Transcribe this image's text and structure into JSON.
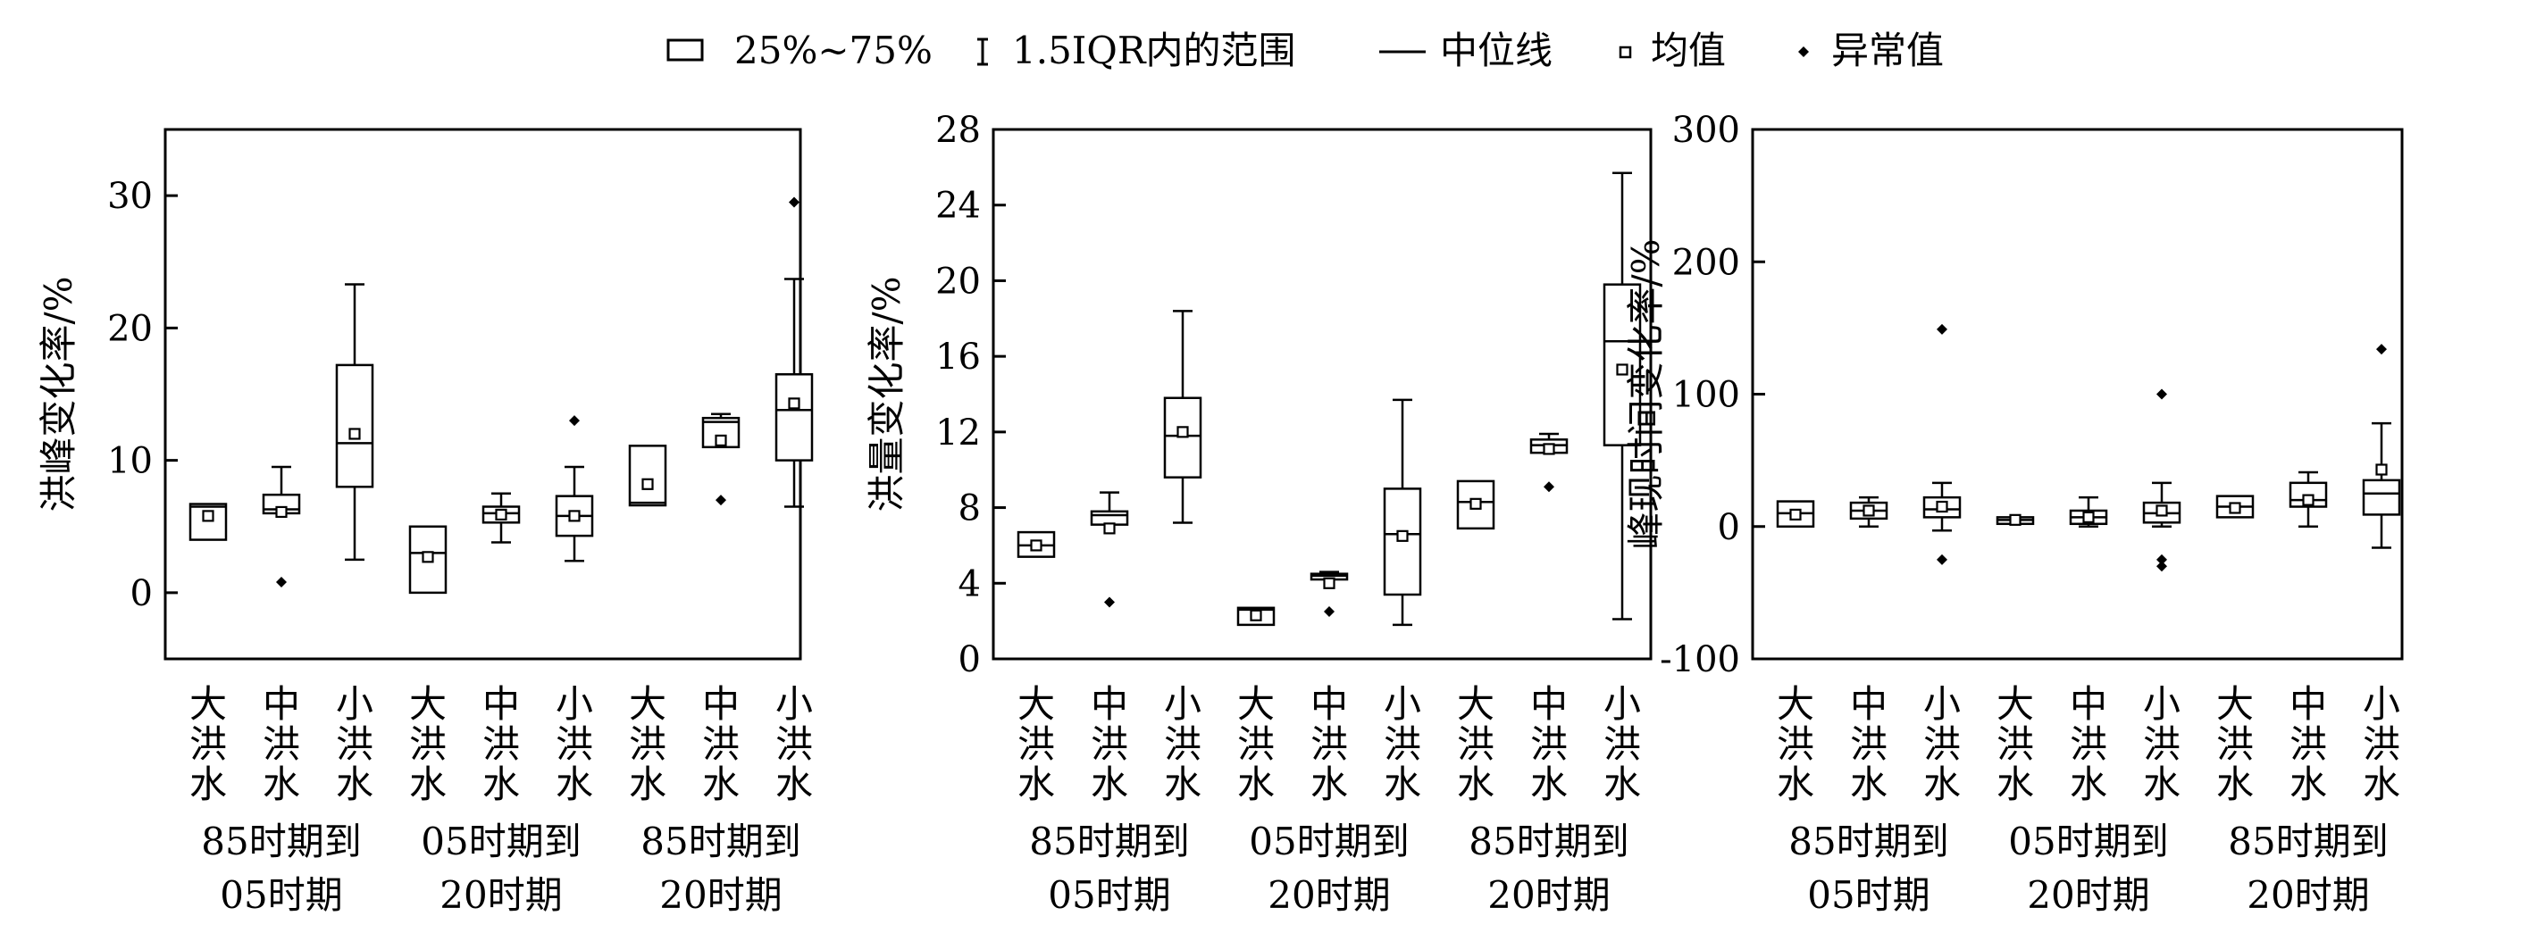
{
  "legend": {
    "box": "25%~75%",
    "whisker": "1.5IQR内的范围",
    "median": "中位线",
    "mean": "均值",
    "outlier": "异常值"
  },
  "categories": [
    "大洪水",
    "中洪水",
    "小洪水"
  ],
  "groups": [
    "85时期到05时期",
    "05时期到20时期",
    "85时期到20时期"
  ],
  "chart_data": [
    {
      "type": "box",
      "ylabel": "洪峰变化率/%",
      "ylim": [
        -5,
        35
      ],
      "yticks": [
        0,
        10,
        20,
        30
      ],
      "groups": [
        "85时期到05时期",
        "05时期到20时期",
        "85时期到20时期"
      ],
      "categories": [
        "大洪水",
        "中洪水",
        "小洪水"
      ],
      "boxes": [
        {
          "group": "85时期到05时期",
          "category": "大洪水",
          "whisker_low": null,
          "q1": 4.0,
          "median": 6.5,
          "q3": 6.7,
          "whisker_high": null,
          "mean": 5.8,
          "outliers": []
        },
        {
          "group": "85时期到05时期",
          "category": "中洪水",
          "whisker_low": null,
          "q1": 6.0,
          "median": 6.3,
          "q3": 7.4,
          "whisker_high": 9.5,
          "mean": 6.1,
          "outliers": [
            0.8
          ]
        },
        {
          "group": "85时期到05时期",
          "category": "小洪水",
          "whisker_low": 2.5,
          "q1": 8.0,
          "median": 11.3,
          "q3": 17.2,
          "whisker_high": 23.3,
          "mean": 12.0,
          "outliers": []
        },
        {
          "group": "05时期到20时期",
          "category": "大洪水",
          "whisker_low": null,
          "q1": 0.0,
          "median": 3.0,
          "q3": 5.0,
          "whisker_high": null,
          "mean": 2.7,
          "outliers": []
        },
        {
          "group": "05时期到20时期",
          "category": "中洪水",
          "whisker_low": 3.8,
          "q1": 5.3,
          "median": 6.0,
          "q3": 6.5,
          "whisker_high": 7.5,
          "mean": 5.9,
          "outliers": []
        },
        {
          "group": "05时期到20时期",
          "category": "小洪水",
          "whisker_low": 2.4,
          "q1": 4.3,
          "median": 5.8,
          "q3": 7.3,
          "whisker_high": 9.5,
          "mean": 5.8,
          "outliers": [
            13.0
          ]
        },
        {
          "group": "85时期到20时期",
          "category": "大洪水",
          "whisker_low": null,
          "q1": 6.6,
          "median": 6.8,
          "q3": 11.1,
          "whisker_high": null,
          "mean": 8.2,
          "outliers": []
        },
        {
          "group": "85时期到20时期",
          "category": "中洪水",
          "whisker_low": null,
          "q1": 11.0,
          "median": 12.9,
          "q3": 13.2,
          "whisker_high": 13.5,
          "mean": 11.5,
          "outliers": [
            7.0
          ]
        },
        {
          "group": "85时期到20时期",
          "category": "小洪水",
          "whisker_low": 6.5,
          "q1": 10.0,
          "median": 13.8,
          "q3": 16.5,
          "whisker_high": 23.7,
          "mean": 14.3,
          "outliers": [
            29.5
          ]
        }
      ]
    },
    {
      "type": "box",
      "ylabel": "洪量变化率/%",
      "ylim": [
        0,
        28
      ],
      "yticks": [
        0,
        4,
        8,
        12,
        16,
        20,
        24,
        28
      ],
      "groups": [
        "85时期到05时期",
        "05时期到20时期",
        "85时期到20时期"
      ],
      "categories": [
        "大洪水",
        "中洪水",
        "小洪水"
      ],
      "boxes": [
        {
          "group": "85时期到05时期",
          "category": "大洪水",
          "whisker_low": null,
          "q1": 5.4,
          "median": 6.0,
          "q3": 6.7,
          "whisker_high": null,
          "mean": 6.0,
          "outliers": []
        },
        {
          "group": "85时期到05时期",
          "category": "中洪水",
          "whisker_low": null,
          "q1": 7.1,
          "median": 7.6,
          "q3": 7.8,
          "whisker_high": 8.8,
          "mean": 6.9,
          "outliers": [
            3.0
          ]
        },
        {
          "group": "85时期到05时期",
          "category": "小洪水",
          "whisker_low": 7.2,
          "q1": 9.6,
          "median": 11.8,
          "q3": 13.8,
          "whisker_high": 18.4,
          "mean": 12.0,
          "outliers": []
        },
        {
          "group": "05时期到20时期",
          "category": "大洪水",
          "whisker_low": null,
          "q1": 1.8,
          "median": 2.6,
          "q3": 2.7,
          "whisker_high": null,
          "mean": 2.3,
          "outliers": []
        },
        {
          "group": "05时期到20时期",
          "category": "中洪水",
          "whisker_low": null,
          "q1": 4.2,
          "median": 4.4,
          "q3": 4.5,
          "whisker_high": 4.6,
          "mean": 4.0,
          "outliers": [
            2.5
          ]
        },
        {
          "group": "05时期到20时期",
          "category": "小洪水",
          "whisker_low": 1.8,
          "q1": 3.4,
          "median": 6.6,
          "q3": 9.0,
          "whisker_high": 13.7,
          "mean": 6.5,
          "outliers": []
        },
        {
          "group": "85时期到20时期",
          "category": "大洪水",
          "whisker_low": null,
          "q1": 6.9,
          "median": 8.3,
          "q3": 9.4,
          "whisker_high": null,
          "mean": 8.2,
          "outliers": []
        },
        {
          "group": "85时期到20时期",
          "category": "中洪水",
          "whisker_low": null,
          "q1": 10.9,
          "median": 11.3,
          "q3": 11.6,
          "whisker_high": 11.9,
          "mean": 11.1,
          "outliers": [
            9.1
          ]
        },
        {
          "group": "85时期到20时期",
          "category": "小洪水",
          "whisker_low": 2.1,
          "q1": 11.3,
          "median": 16.8,
          "q3": 19.8,
          "whisker_high": 25.7,
          "mean": 15.3,
          "outliers": []
        }
      ]
    },
    {
      "type": "box",
      "ylabel": "峰现时间变化率/%",
      "ylim": [
        -100,
        300
      ],
      "yticks": [
        -100,
        0,
        100,
        200,
        300
      ],
      "groups": [
        "85时期到05时期",
        "05时期到20时期",
        "85时期到20时期"
      ],
      "categories": [
        "大洪水",
        "中洪水",
        "小洪水"
      ],
      "boxes": [
        {
          "group": "85时期到05时期",
          "category": "大洪水",
          "whisker_low": null,
          "q1": 0,
          "median": 10,
          "q3": 19,
          "whisker_high": null,
          "mean": 9,
          "outliers": []
        },
        {
          "group": "85时期到05时期",
          "category": "中洪水",
          "whisker_low": 0,
          "q1": 6,
          "median": 12,
          "q3": 18,
          "whisker_high": 22,
          "mean": 12,
          "outliers": []
        },
        {
          "group": "85时期到05时期",
          "category": "小洪水",
          "whisker_low": -3,
          "q1": 7,
          "median": 13,
          "q3": 22,
          "whisker_high": 33,
          "mean": 15,
          "outliers": [
            149,
            -25
          ]
        },
        {
          "group": "05时期到20时期",
          "category": "大洪水",
          "whisker_low": null,
          "q1": 2,
          "median": 5,
          "q3": 7,
          "whisker_high": null,
          "mean": 5,
          "outliers": []
        },
        {
          "group": "05时期到20时期",
          "category": "中洪水",
          "whisker_low": 0,
          "q1": 2,
          "median": 7,
          "q3": 12,
          "whisker_high": 22,
          "mean": 7,
          "outliers": []
        },
        {
          "group": "05时期到20时期",
          "category": "小洪水",
          "whisker_low": 0,
          "q1": 3,
          "median": 10,
          "q3": 18,
          "whisker_high": 33,
          "mean": 12,
          "outliers": [
            100,
            -25,
            -30
          ]
        },
        {
          "group": "85时期到20时期",
          "category": "大洪水",
          "whisker_low": null,
          "q1": 7,
          "median": 15,
          "q3": 23,
          "whisker_high": null,
          "mean": 14,
          "outliers": []
        },
        {
          "group": "85时期到20时期",
          "category": "中洪水",
          "whisker_low": 0,
          "q1": 15,
          "median": 20,
          "q3": 33,
          "whisker_high": 41,
          "mean": 20,
          "outliers": []
        },
        {
          "group": "85时期到20时期",
          "category": "小洪水",
          "whisker_low": -16,
          "q1": 9,
          "median": 25,
          "q3": 35,
          "whisker_high": 78,
          "mean": 43,
          "outliers": [
            134
          ]
        }
      ]
    }
  ]
}
